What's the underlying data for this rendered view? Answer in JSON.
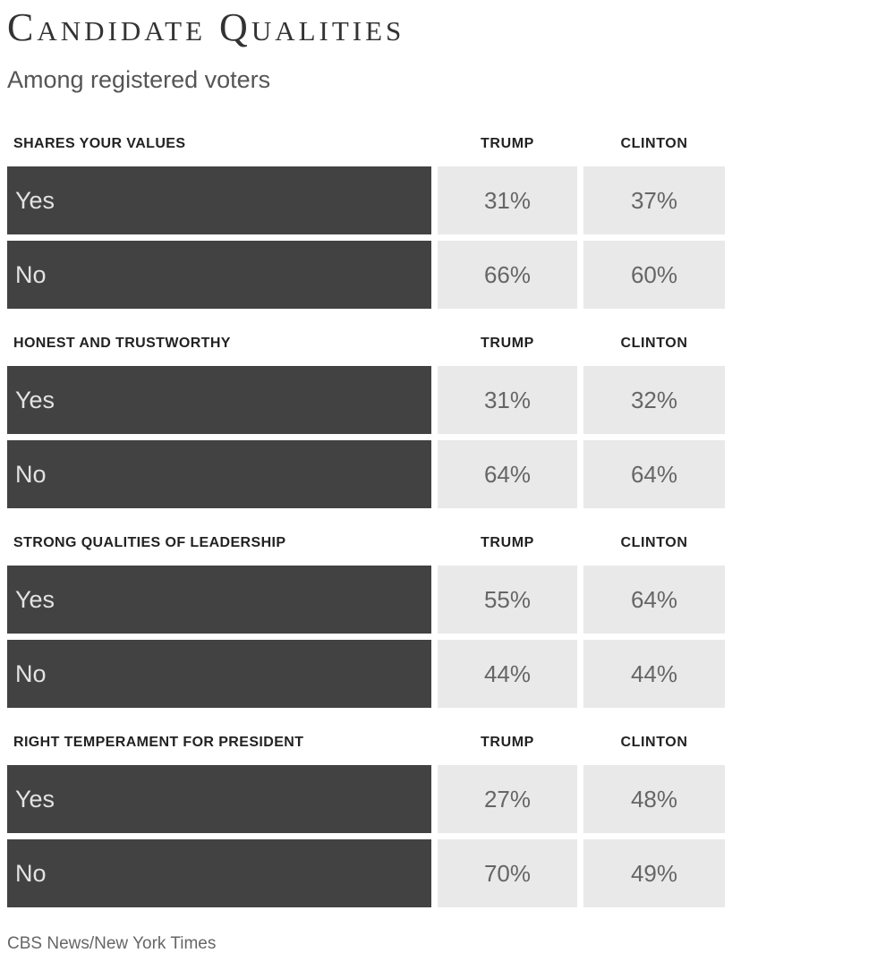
{
  "header": {
    "title": "Candidate Qualities",
    "subtitle": "Among registered voters"
  },
  "columns": [
    "TRUMP",
    "CLINTON"
  ],
  "sections": [
    {
      "label": "SHARES YOUR VALUES",
      "rows": [
        {
          "label": "Yes",
          "trump": "31%",
          "clinton": "37%"
        },
        {
          "label": "No",
          "trump": "66%",
          "clinton": "60%"
        }
      ]
    },
    {
      "label": "HONEST AND TRUSTWORTHY",
      "rows": [
        {
          "label": "Yes",
          "trump": "31%",
          "clinton": "32%"
        },
        {
          "label": "No",
          "trump": "64%",
          "clinton": "64%"
        }
      ]
    },
    {
      "label": "STRONG QUALITIES OF LEADERSHIP",
      "rows": [
        {
          "label": "Yes",
          "trump": "55%",
          "clinton": "64%"
        },
        {
          "label": "No",
          "trump": "44%",
          "clinton": "44%"
        }
      ]
    },
    {
      "label": "RIGHT TEMPERAMENT FOR PRESIDENT",
      "rows": [
        {
          "label": "Yes",
          "trump": "27%",
          "clinton": "48%"
        },
        {
          "label": "No",
          "trump": "70%",
          "clinton": "49%"
        }
      ]
    }
  ],
  "footer": {
    "source": "CBS News/New York Times"
  },
  "colors": {
    "bar": "#424242",
    "bar_text": "#e3e3e3",
    "cell": "#e9e9e9",
    "cell_text": "#666666",
    "heading_text": "#222222",
    "title_text": "#333333",
    "subtitle_text": "#555555",
    "source_text": "#666666"
  },
  "chart_data": {
    "type": "table",
    "title": "Candidate Qualities",
    "subtitle": "Among registered voters",
    "columns": [
      "Trump",
      "Clinton"
    ],
    "units": "percent",
    "sections": [
      {
        "question": "Shares your values",
        "rows": [
          {
            "answer": "Yes",
            "Trump": 31,
            "Clinton": 37
          },
          {
            "answer": "No",
            "Trump": 66,
            "Clinton": 60
          }
        ]
      },
      {
        "question": "Honest and trustworthy",
        "rows": [
          {
            "answer": "Yes",
            "Trump": 31,
            "Clinton": 32
          },
          {
            "answer": "No",
            "Trump": 64,
            "Clinton": 64
          }
        ]
      },
      {
        "question": "Strong qualities of leadership",
        "rows": [
          {
            "answer": "Yes",
            "Trump": 55,
            "Clinton": 64
          },
          {
            "answer": "No",
            "Trump": 44,
            "Clinton": 44
          }
        ]
      },
      {
        "question": "Right temperament for president",
        "rows": [
          {
            "answer": "Yes",
            "Trump": 27,
            "Clinton": 48
          },
          {
            "answer": "No",
            "Trump": 70,
            "Clinton": 49
          }
        ]
      }
    ],
    "source": "CBS News/New York Times",
    "layout": {
      "grid": false,
      "legend": "none",
      "bar_color": "#424242",
      "cell_color": "#e9e9e9"
    }
  }
}
